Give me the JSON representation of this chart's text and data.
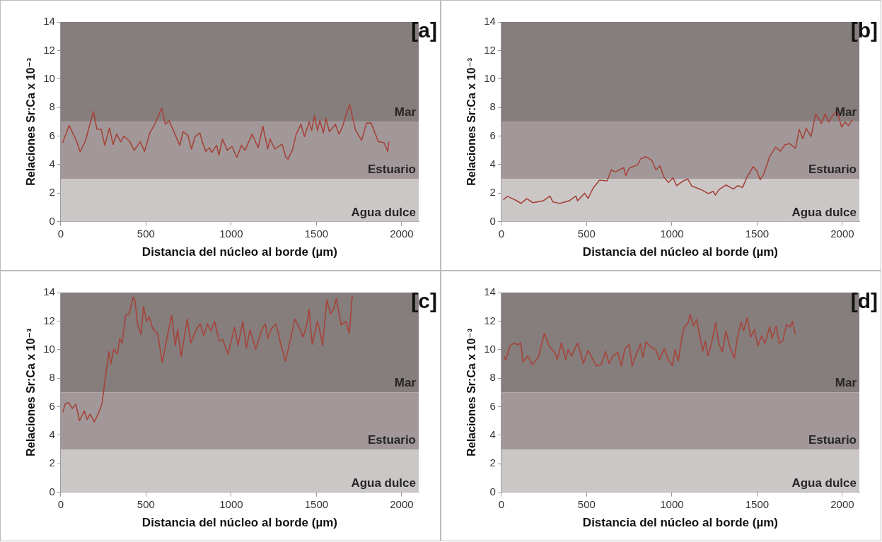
{
  "chart_data": [
    {
      "type": "line",
      "xlabel": "Distancia del núcleo al borde (µm)",
      "ylabel": "Relaciones Sr:Ca x 10⁻³",
      "annotations": [
        "[a]"
      ],
      "xlim": [
        0,
        2100
      ],
      "xticks": [
        0,
        500,
        1000,
        1500,
        2000
      ],
      "ylim": [
        0,
        14
      ],
      "yticks": [
        0,
        2,
        4,
        6,
        8,
        10,
        12,
        14
      ],
      "grid": false,
      "legend": false,
      "marker": "none",
      "line_style": "solid",
      "bands": [
        {
          "axis": "y",
          "from": 7,
          "to": 14,
          "label": "Mar",
          "color": "#867d7d"
        },
        {
          "axis": "y",
          "from": 3,
          "to": 7,
          "label": "Estuario",
          "color": "#a29899"
        },
        {
          "axis": "y",
          "from": 0,
          "to": 3,
          "label": "Agua dulce",
          "color": "#cbc7c7"
        }
      ],
      "series": [
        {
          "color": "#a5443a",
          "x": [
            11,
            49,
            91,
            114,
            146,
            167,
            192,
            212,
            237,
            258,
            286,
            307,
            328,
            352,
            370,
            405,
            430,
            467,
            491,
            523,
            551,
            593,
            614,
            635,
            670,
            698,
            718,
            746,
            767,
            788,
            816,
            830,
            851,
            872,
            886,
            914,
            928,
            949,
            977,
            1005,
            1033,
            1060,
            1081,
            1123,
            1158,
            1186,
            1214,
            1228,
            1256,
            1298,
            1319,
            1333,
            1361,
            1381,
            1409,
            1430,
            1458,
            1472,
            1489,
            1506,
            1520,
            1541,
            1555,
            1576,
            1611,
            1632,
            1653,
            1674,
            1695,
            1730,
            1765,
            1793,
            1821,
            1863,
            1897,
            1918,
            1925
          ],
          "values": [
            5.53,
            6.74,
            5.7,
            4.89,
            5.7,
            6.65,
            7.72,
            6.48,
            6.48,
            5.35,
            6.56,
            5.4,
            6.13,
            5.58,
            6.0,
            5.61,
            5.0,
            5.61,
            4.92,
            6.22,
            6.82,
            7.94,
            6.82,
            7.08,
            6.13,
            5.35,
            6.3,
            6.04,
            5.09,
            5.96,
            6.22,
            5.61,
            4.92,
            5.18,
            4.84,
            5.35,
            4.66,
            5.79,
            5.0,
            5.27,
            4.49,
            5.35,
            5.0,
            6.13,
            5.18,
            6.68,
            5.09,
            5.79,
            5.09,
            5.44,
            4.58,
            4.37,
            5.09,
            6.13,
            6.82,
            5.96,
            7.0,
            6.39,
            7.43,
            6.39,
            7.08,
            6.22,
            7.25,
            6.3,
            6.82,
            6.13,
            6.65,
            7.51,
            8.2,
            6.39,
            5.7,
            6.91,
            6.91,
            5.61,
            5.53,
            4.92,
            5.61
          ]
        }
      ]
    },
    {
      "type": "line",
      "xlabel": "Distancia del núcleo al borde (µm)",
      "ylabel": "Relaciones Sr:Ca x 10⁻³",
      "annotations": [
        "[b]"
      ],
      "xlim": [
        0,
        2100
      ],
      "xticks": [
        0,
        500,
        1000,
        1500,
        2000
      ],
      "ylim": [
        0,
        14
      ],
      "yticks": [
        0,
        2,
        4,
        6,
        8,
        10,
        12,
        14
      ],
      "grid": false,
      "legend": false,
      "marker": "none",
      "line_style": "solid",
      "bands": [
        {
          "axis": "y",
          "from": 7,
          "to": 14,
          "label": "Mar",
          "color": "#867d7d"
        },
        {
          "axis": "y",
          "from": 3,
          "to": 7,
          "label": "Estuario",
          "color": "#a29899"
        },
        {
          "axis": "y",
          "from": 0,
          "to": 3,
          "label": "Agua dulce",
          "color": "#cbc7c7"
        }
      ],
      "series": [
        {
          "color": "#a5443a",
          "x": [
            11,
            36,
            80,
            115,
            149,
            184,
            246,
            285,
            302,
            343,
            398,
            437,
            447,
            488,
            509,
            537,
            575,
            620,
            645,
            668,
            717,
            730,
            751,
            800,
            816,
            848,
            883,
            907,
            931,
            952,
            980,
            1007,
            1028,
            1062,
            1093,
            1117,
            1173,
            1214,
            1242,
            1256,
            1276,
            1318,
            1360,
            1387,
            1415,
            1442,
            1477,
            1498,
            1518,
            1539,
            1574,
            1608,
            1636,
            1664,
            1691,
            1726,
            1747,
            1768,
            1788,
            1816,
            1844,
            1878,
            1899,
            1920,
            1940,
            1968,
            1996,
            2016,
            2037,
            2058
          ],
          "values": [
            1.53,
            1.77,
            1.53,
            1.28,
            1.61,
            1.33,
            1.46,
            1.79,
            1.38,
            1.28,
            1.46,
            1.79,
            1.46,
            1.99,
            1.63,
            2.32,
            2.9,
            2.85,
            3.62,
            3.48,
            3.78,
            3.23,
            3.76,
            3.98,
            4.39,
            4.56,
            4.28,
            3.62,
            3.9,
            3.15,
            2.74,
            3.07,
            2.52,
            2.82,
            2.99,
            2.49,
            2.24,
            1.96,
            2.12,
            1.86,
            2.24,
            2.57,
            2.29,
            2.52,
            2.4,
            3.15,
            3.85,
            3.57,
            2.94,
            3.32,
            4.56,
            5.22,
            4.94,
            5.39,
            5.47,
            5.14,
            6.47,
            5.8,
            6.55,
            5.97,
            7.55,
            6.88,
            7.55,
            6.97,
            7.38,
            7.79,
            6.63,
            6.97,
            6.72,
            7.13
          ]
        }
      ]
    },
    {
      "type": "line",
      "xlabel": "Distancia del núcleo al borde (µm)",
      "ylabel": "Relaciones Sr:Ca x 10⁻³",
      "annotations": [
        "[c]"
      ],
      "xlim": [
        0,
        2100
      ],
      "xticks": [
        0,
        500,
        1000,
        1500,
        2000
      ],
      "ylim": [
        0,
        14
      ],
      "yticks": [
        0,
        2,
        4,
        6,
        8,
        10,
        12,
        14
      ],
      "grid": false,
      "legend": false,
      "marker": "none",
      "line_style": "solid",
      "bands": [
        {
          "axis": "y",
          "from": 7,
          "to": 14,
          "label": "Mar",
          "color": "#867d7d"
        },
        {
          "axis": "y",
          "from": 3,
          "to": 7,
          "label": "Estuario",
          "color": "#a29899"
        },
        {
          "axis": "y",
          "from": 0,
          "to": 3,
          "label": "Agua dulce",
          "color": "#cbc7c7"
        }
      ],
      "series": [
        {
          "color": "#a5443a",
          "x": [
            13,
            26,
            47,
            68,
            89,
            110,
            138,
            155,
            172,
            197,
            221,
            242,
            262,
            283,
            294,
            311,
            332,
            346,
            360,
            381,
            401,
            425,
            436,
            450,
            471,
            485,
            503,
            519,
            540,
            568,
            596,
            624,
            651,
            672,
            686,
            707,
            742,
            763,
            790,
            818,
            839,
            860,
            881,
            902,
            929,
            950,
            981,
            1020,
            1040,
            1068,
            1089,
            1110,
            1144,
            1179,
            1200,
            1214,
            1235,
            1263,
            1291,
            1318,
            1339,
            1374,
            1402,
            1422,
            1443,
            1457,
            1475,
            1506,
            1520,
            1536,
            1561,
            1582,
            1603,
            1617,
            1645,
            1672,
            1693,
            1710
          ],
          "values": [
            5.61,
            6.21,
            6.29,
            5.87,
            6.17,
            5.02,
            5.7,
            5.1,
            5.49,
            4.93,
            5.53,
            6.21,
            8.07,
            9.86,
            9.01,
            10.03,
            9.69,
            10.79,
            10.45,
            12.4,
            12.49,
            13.68,
            13.42,
            11.81,
            11.05,
            13.03,
            11.98,
            12.32,
            11.47,
            11.13,
            9.09,
            10.88,
            12.4,
            10.28,
            11.39,
            9.52,
            12.15,
            10.45,
            11.3,
            11.81,
            10.96,
            11.81,
            11.3,
            11.98,
            10.62,
            10.71,
            9.69,
            11.56,
            10.28,
            11.98,
            10.11,
            11.39,
            10.03,
            11.39,
            11.81,
            10.79,
            11.47,
            11.81,
            10.37,
            9.18,
            10.28,
            12.15,
            11.47,
            10.88,
            11.73,
            12.83,
            10.37,
            11.98,
            11.3,
            10.28,
            13.51,
            12.49,
            12.91,
            13.59,
            11.73,
            11.98,
            11.13,
            13.76
          ]
        }
      ]
    },
    {
      "type": "line",
      "xlabel": "Distancia del núcleo al borde (µm)",
      "ylabel": "Relaciones Sr:Ca x 10⁻³",
      "annotations": [
        "[d]"
      ],
      "xlim": [
        0,
        2100
      ],
      "xticks": [
        0,
        500,
        1000,
        1500,
        2000
      ],
      "ylim": [
        0,
        14
      ],
      "yticks": [
        0,
        2,
        4,
        6,
        8,
        10,
        12,
        14
      ],
      "grid": false,
      "legend": false,
      "marker": "none",
      "line_style": "solid",
      "bands": [
        {
          "axis": "y",
          "from": 7,
          "to": 14,
          "label": "Mar",
          "color": "#867d7d"
        },
        {
          "axis": "y",
          "from": 3,
          "to": 7,
          "label": "Estuario",
          "color": "#a29899"
        },
        {
          "axis": "y",
          "from": 0,
          "to": 3,
          "label": "Agua dulce",
          "color": "#cbc7c7"
        }
      ],
      "series": [
        {
          "color": "#a5443a",
          "x": [
            15,
            26,
            50,
            71,
            99,
            113,
            127,
            154,
            182,
            217,
            252,
            280,
            315,
            328,
            352,
            377,
            391,
            412,
            447,
            481,
            509,
            537,
            558,
            586,
            611,
            631,
            656,
            683,
            704,
            725,
            750,
            767,
            788,
            816,
            830,
            848,
            878,
            906,
            927,
            955,
            979,
            1004,
            1018,
            1038,
            1059,
            1073,
            1094,
            1108,
            1126,
            1146,
            1163,
            1182,
            1196,
            1212,
            1233,
            1257,
            1275,
            1296,
            1317,
            1338,
            1366,
            1386,
            1407,
            1421,
            1442,
            1463,
            1484,
            1505,
            1526,
            1546,
            1574,
            1588,
            1612,
            1630,
            1651,
            1672,
            1693,
            1707,
            1725
          ],
          "values": [
            9.56,
            9.25,
            10.26,
            10.44,
            10.35,
            10.47,
            9.12,
            9.56,
            8.95,
            9.47,
            11.14,
            10.26,
            9.74,
            9.3,
            10.47,
            9.3,
            10.0,
            9.56,
            10.47,
            9.04,
            9.95,
            9.3,
            8.86,
            8.95,
            9.88,
            9.04,
            9.56,
            9.82,
            8.86,
            10.09,
            10.35,
            8.86,
            9.56,
            10.4,
            9.47,
            10.53,
            10.18,
            10.0,
            9.3,
            10.09,
            9.3,
            8.86,
            10.0,
            9.21,
            10.88,
            11.58,
            11.84,
            12.46,
            11.67,
            12.11,
            10.96,
            9.91,
            10.61,
            9.56,
            10.44,
            11.89,
            10.44,
            9.82,
            11.32,
            10.26,
            9.39,
            10.96,
            11.93,
            11.32,
            12.23,
            10.88,
            11.4,
            10.26,
            10.96,
            10.44,
            11.58,
            10.79,
            11.67,
            10.44,
            10.61,
            11.75,
            11.58,
            11.98,
            11.05
          ]
        }
      ]
    }
  ]
}
